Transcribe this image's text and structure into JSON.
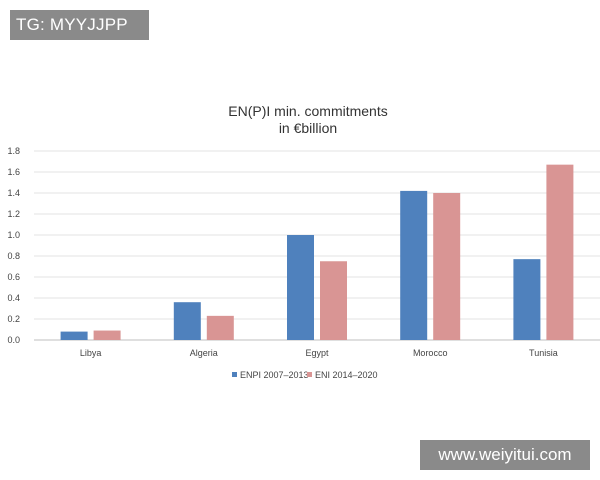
{
  "watermarks": {
    "top": "TG: MYYJJPP",
    "bottom": "www.weiyitui.com"
  },
  "chart_data": {
    "type": "bar",
    "title": "EN(P)I min. commitments",
    "subtitle": "in €billion",
    "categories": [
      "Libya",
      "Algeria",
      "Egypt",
      "Morocco",
      "Tunisia"
    ],
    "series": [
      {
        "name": "ENPI 2007–2013",
        "color": "#4f81bd",
        "values": [
          0.08,
          0.36,
          1.0,
          1.42,
          0.77
        ]
      },
      {
        "name": "ENI 2014–2020",
        "color": "#d99594",
        "values": [
          0.09,
          0.23,
          0.75,
          1.4,
          1.67
        ]
      }
    ],
    "yticks": [
      "0.0",
      "0.2",
      "0.4",
      "0.6",
      "0.8",
      "1.0",
      "1.2",
      "1.4",
      "1.6",
      "1.8"
    ],
    "ylim": [
      0,
      1.8
    ],
    "grid": true,
    "legend_position": "bottom"
  }
}
